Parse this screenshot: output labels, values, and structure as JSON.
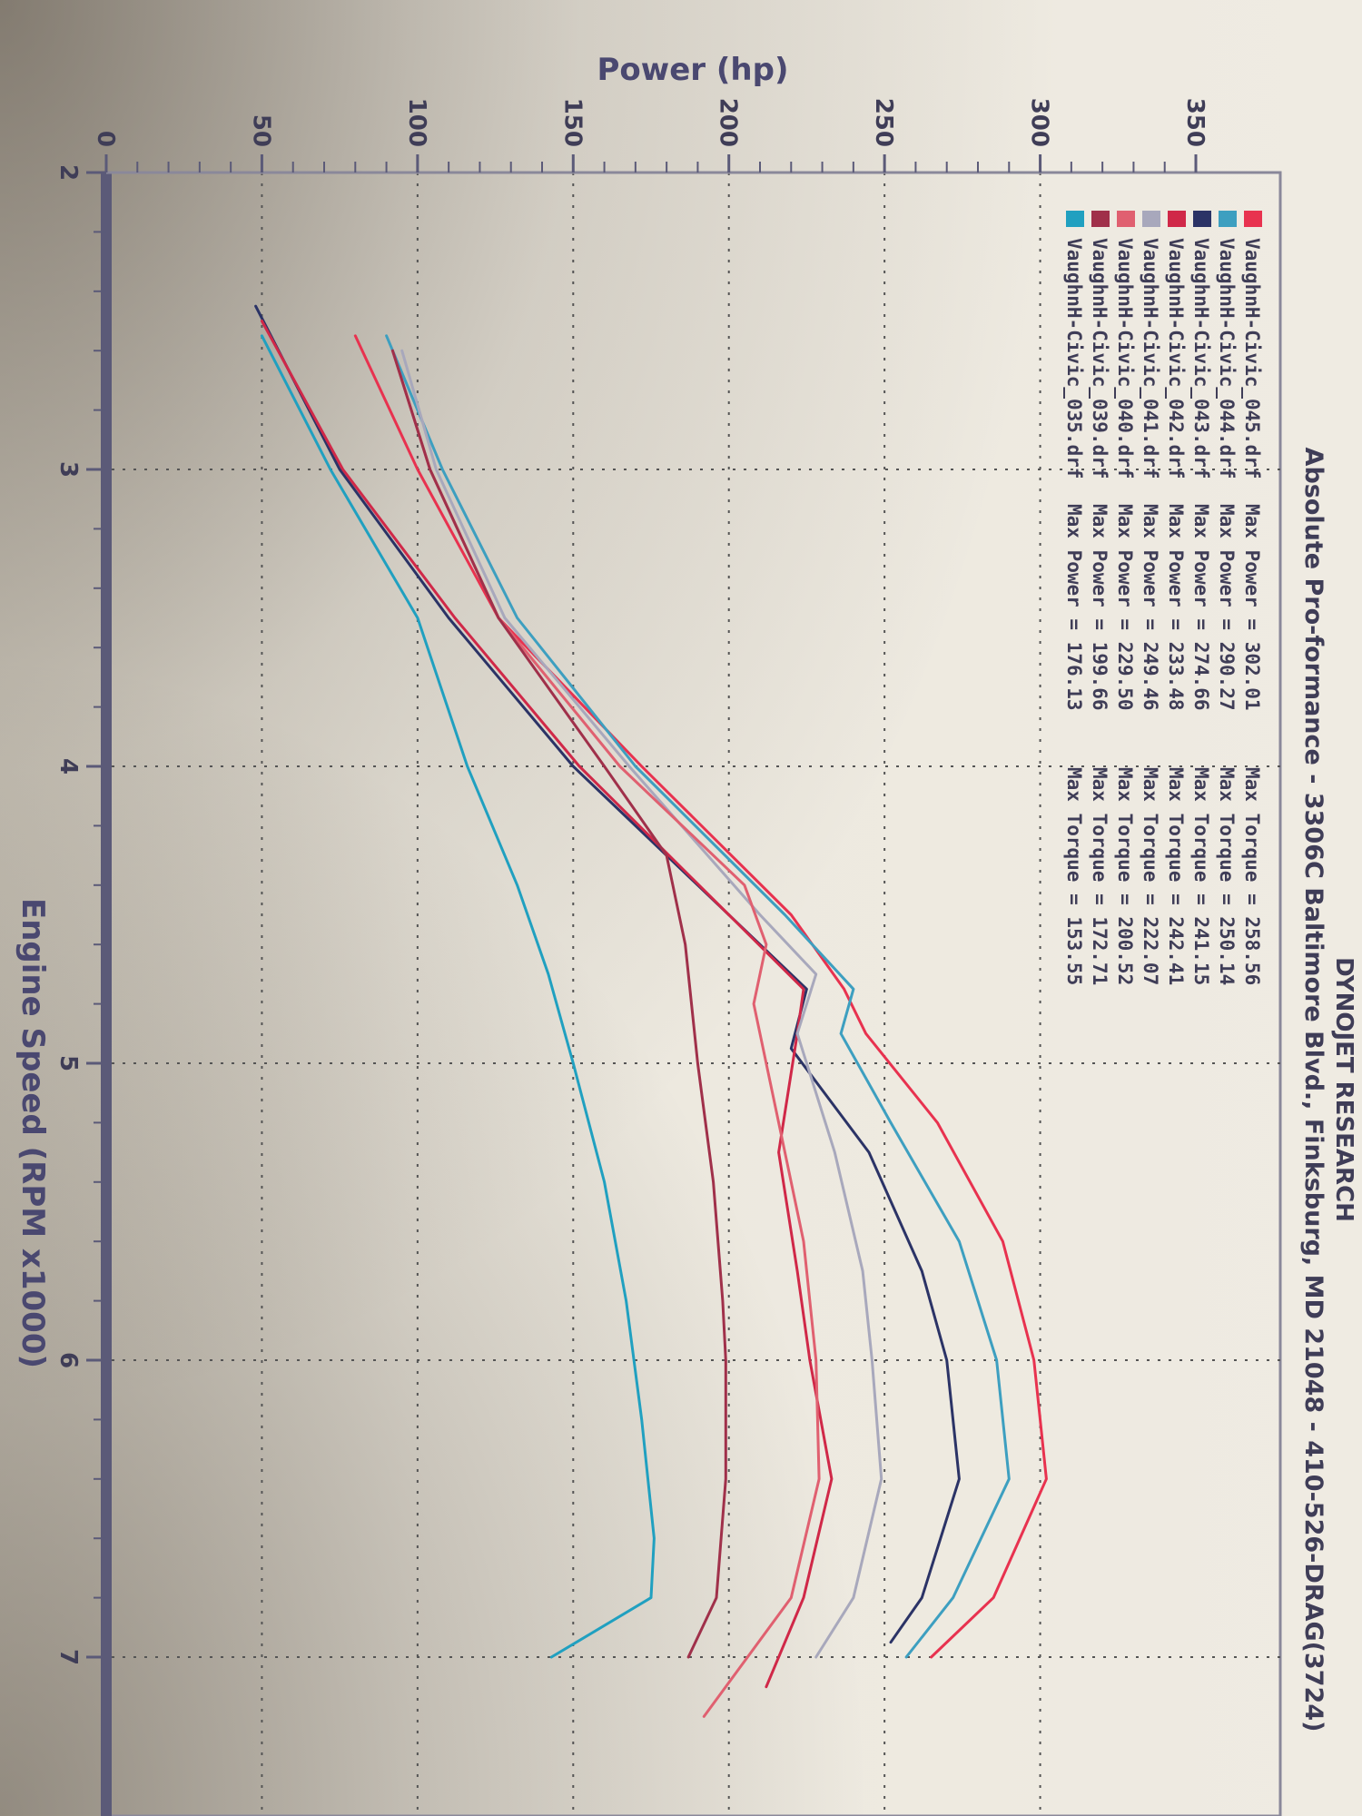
{
  "chart_data": {
    "type": "line",
    "header": "DYNOJET RESEARCH",
    "subtitle": "Absolute Pro-formance - 3306C Baltimore Blvd., Finksburg, MD 21048 - 410-526-DRAG(3724)",
    "xlabel": "Engine Speed (RPM x1000)",
    "ylabel": "Power (hp)",
    "xlim": [
      2,
      7.2
    ],
    "ylim": [
      0,
      350
    ],
    "x_ticks": [
      "2",
      "3",
      "4",
      "5",
      "6",
      "7"
    ],
    "y_ticks": [
      "0",
      "50",
      "100",
      "150",
      "200",
      "250",
      "300",
      "350"
    ],
    "grid": true,
    "legend_position": "top-left",
    "series": [
      {
        "name": "VaughnH-Civic_045.drf",
        "legend_text": "Max Power = 302.01",
        "torque_text": "Max Torque = 258.56",
        "color": "#e8324f",
        "x": [
          2.55,
          3.0,
          3.5,
          4.0,
          4.5,
          4.75,
          4.9,
          5.2,
          5.6,
          6.0,
          6.4,
          6.8,
          7.0
        ],
        "y": [
          80,
          100,
          126,
          172,
          220,
          237,
          244,
          267,
          288,
          298,
          302,
          285,
          265
        ]
      },
      {
        "name": "VaughnH-Civic_044.drf",
        "legend_text": "Max Power = 290.27",
        "torque_text": "Max Torque = 250.14",
        "color": "#3d9fc0",
        "x": [
          2.55,
          3.0,
          3.5,
          4.0,
          4.5,
          4.75,
          4.9,
          5.2,
          5.6,
          6.0,
          6.4,
          6.8,
          7.0
        ],
        "y": [
          90,
          108,
          132,
          170,
          218,
          240,
          236,
          252,
          274,
          286,
          290,
          272,
          257
        ]
      },
      {
        "name": "VaughnH-Civic_043.drf",
        "legend_text": "Max Power = 274.66",
        "torque_text": "Max Torque = 241.15",
        "color": "#2b3366",
        "x": [
          2.45,
          3.0,
          3.5,
          4.0,
          4.5,
          4.75,
          4.95,
          5.3,
          5.7,
          6.0,
          6.4,
          6.8,
          6.95
        ],
        "y": [
          48,
          75,
          110,
          150,
          200,
          225,
          220,
          245,
          262,
          270,
          274,
          262,
          252
        ]
      },
      {
        "name": "VaughnH-Civic_042.drf",
        "legend_text": "Max Power = 233.48",
        "torque_text": "Max Torque = 242.41",
        "color": "#d02848",
        "x": [
          2.5,
          3.0,
          3.5,
          4.0,
          4.5,
          4.75,
          4.9,
          5.3,
          5.7,
          6.0,
          6.4,
          6.8,
          7.1
        ],
        "y": [
          50,
          76,
          112,
          152,
          200,
          224,
          222,
          216,
          222,
          226,
          233,
          224,
          212
        ]
      },
      {
        "name": "VaughnH-Civic_041.drf",
        "legend_text": "Max Power = 249.46",
        "torque_text": "Max Torque = 222.07",
        "color": "#a8a8bc",
        "x": [
          2.6,
          3.0,
          3.5,
          4.0,
          4.5,
          4.7,
          4.9,
          5.3,
          5.7,
          6.0,
          6.4,
          6.8,
          7.0
        ],
        "y": [
          95,
          106,
          128,
          168,
          210,
          228,
          222,
          234,
          243,
          246,
          249,
          240,
          228
        ]
      },
      {
        "name": "VaughnH-Civic_040.drf",
        "legend_text": "Max Power = 229.50",
        "torque_text": "Max Torque = 200.52",
        "color": "#e06070",
        "x": [
          2.6,
          3.0,
          3.5,
          4.0,
          4.4,
          4.6,
          4.8,
          5.2,
          5.6,
          6.0,
          6.4,
          6.8,
          7.2
        ],
        "y": [
          92,
          104,
          126,
          165,
          205,
          212,
          208,
          216,
          224,
          228,
          229,
          220,
          192
        ]
      },
      {
        "name": "VaughnH-Civic_039.drf",
        "legend_text": "Max Power = 199.66",
        "torque_text": "Max Torque = 172.71",
        "color": "#a0304a",
        "x": [
          2.6,
          3.0,
          3.5,
          4.0,
          4.3,
          4.6,
          5.0,
          5.4,
          5.8,
          6.0,
          6.4,
          6.8,
          7.0
        ],
        "y": [
          92,
          104,
          126,
          160,
          180,
          186,
          190,
          195,
          198,
          199,
          199,
          196,
          187
        ]
      },
      {
        "name": "VaughnH-Civic_035.drf",
        "legend_text": "Max Power = 176.13",
        "torque_text": "Max Torque = 153.55",
        "color": "#20a0c0",
        "x": [
          2.55,
          3.0,
          3.5,
          4.0,
          4.4,
          4.7,
          5.0,
          5.4,
          5.8,
          6.2,
          6.6,
          6.8,
          7.0
        ],
        "y": [
          50,
          72,
          100,
          116,
          132,
          142,
          150,
          160,
          167,
          172,
          176,
          175,
          143
        ]
      }
    ]
  }
}
